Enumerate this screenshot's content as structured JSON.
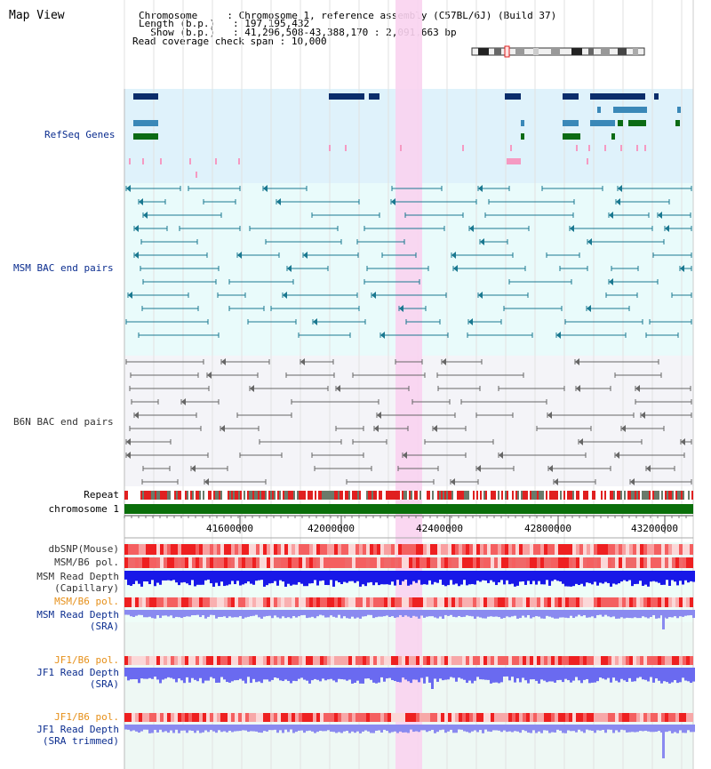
{
  "view": {
    "title": "Map View",
    "info": {
      "chromosome_label": "Chromosome",
      "chromosome_value": "Chromosome 1, reference assembly (C57BL/6J) (Build 37)",
      "length_label": "Length (b.p.)",
      "length_value": "197,195,432",
      "show_label": "Show (b.p.)",
      "show_value": "41,296,508-43,388,170 : 2,091,663 bp",
      "span_label": "Read coverage check span",
      "span_value": "10,000"
    }
  },
  "tracks": {
    "refseq": "RefSeq Genes",
    "msm_bac": "MSM BAC end pairs",
    "b6n_bac": "B6N BAC end pairs",
    "repeat": "Repeat",
    "chromosome": "chromosome 1",
    "dbsnp": "dbSNP(Mouse)",
    "msm_b6_pol": "MSM/B6 pol.",
    "msm_depth_cap_1": "MSM Read Depth",
    "msm_depth_cap_2": "(Capillary)",
    "msm_b6_pol_2": "MSM/B6 pol.",
    "msm_depth_sra_1": "MSM Read Depth",
    "msm_depth_sra_2": "(SRA)",
    "jf1_b6_pol": "JF1/B6 pol.",
    "jf1_depth_sra_1": "JF1 Read Depth",
    "jf1_depth_sra_2": "(SRA)",
    "jf1_b6_pol_2": "JF1/B6 pol.",
    "jf1_depth_trim_1": "JF1 Read Depth",
    "jf1_depth_trim_2": "(SRA trimmed)"
  },
  "axis": {
    "ticks": [
      "41600000",
      "42000000",
      "42400000",
      "42800000",
      "43200000"
    ]
  },
  "colors": {
    "refseq_bg": "#dff2fb",
    "msm_bg": "#e9fbfb",
    "b6n_bg": "#f4f4f8",
    "highlight": "#f9d3f0",
    "gene_dark": "#0b2d6b",
    "gene_mid": "#3a88b8",
    "gene_green": "#0b6b14",
    "msm_line": "#1a7890",
    "b6n_line": "#666666",
    "label_blue": "#0b2d8f",
    "label_orange": "#e6901a",
    "label_dark": "#333333",
    "depth_blue": "#1818e8",
    "depth_light": "#8a8af0",
    "chromosome_green": "#0a6e0a"
  }
}
